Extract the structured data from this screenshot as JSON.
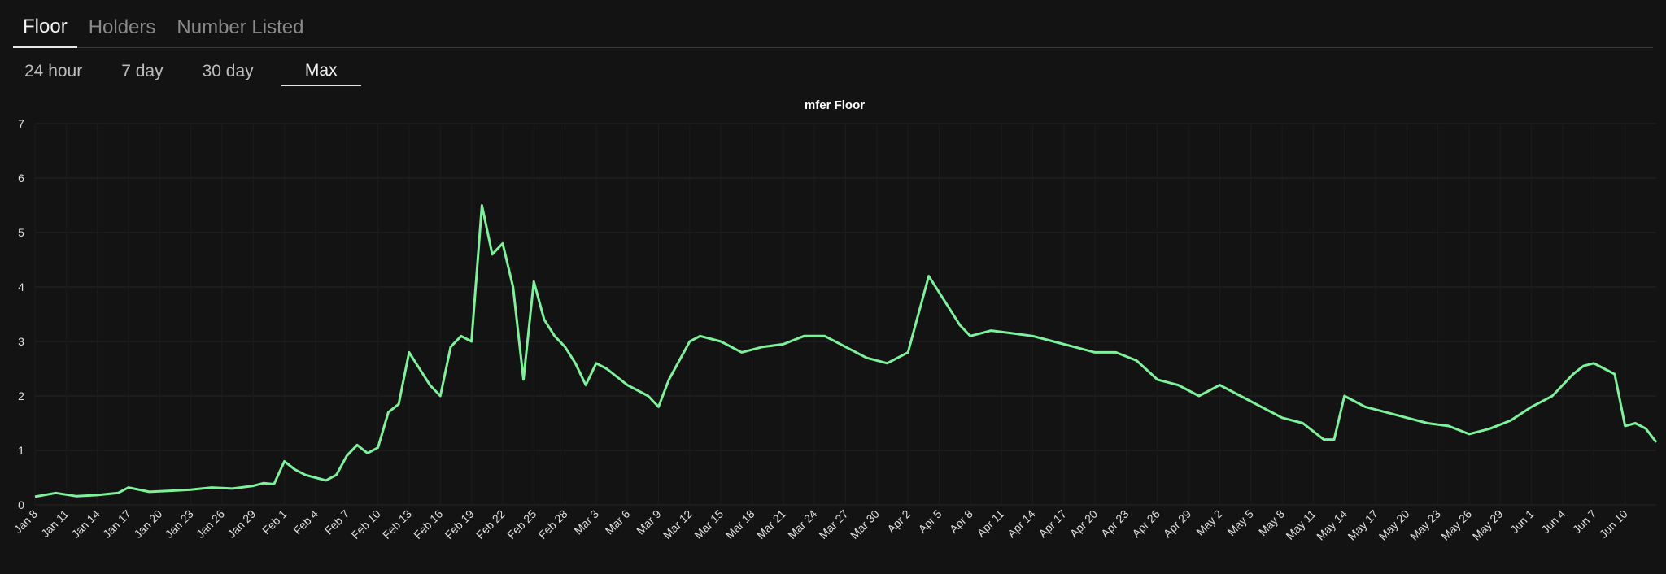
{
  "tabs": [
    {
      "label": "Floor",
      "active": true
    },
    {
      "label": "Holders",
      "active": false
    },
    {
      "label": "Number Listed",
      "active": false
    }
  ],
  "ranges": [
    {
      "label": "24 hour",
      "active": false
    },
    {
      "label": "7 day",
      "active": false
    },
    {
      "label": "30 day",
      "active": false
    },
    {
      "label": "Max",
      "active": true
    }
  ],
  "colors": {
    "line": "#7cf29b",
    "background": "#131313",
    "grid": "#262626"
  },
  "chart_data": {
    "type": "line",
    "title": "mfer Floor",
    "xlabel": "",
    "ylabel": "",
    "ylim": [
      0,
      7
    ],
    "yticks": [
      0,
      1,
      2,
      3,
      4,
      5,
      6,
      7
    ],
    "xlim": [
      "Jan 8",
      "Jun 13"
    ],
    "grid": true,
    "legend": "none",
    "xtick_labels": [
      "Jan 8",
      "Jan 11",
      "Jan 14",
      "Jan 17",
      "Jan 20",
      "Jan 23",
      "Jan 26",
      "Jan 29",
      "Feb 1",
      "Feb 4",
      "Feb 7",
      "Feb 10",
      "Feb 13",
      "Feb 16",
      "Feb 19",
      "Feb 22",
      "Feb 25",
      "Feb 28",
      "Mar 3",
      "Mar 6",
      "Mar 9",
      "Mar 12",
      "Mar 15",
      "Mar 18",
      "Mar 21",
      "Mar 24",
      "Mar 27",
      "Mar 30",
      "Apr 2",
      "Apr 5",
      "Apr 8",
      "Apr 11",
      "Apr 14",
      "Apr 17",
      "Apr 20",
      "Apr 23",
      "Apr 26",
      "Apr 29",
      "May 2",
      "May 5",
      "May 8",
      "May 11",
      "May 14",
      "May 17",
      "May 20",
      "May 23",
      "May 26",
      "May 29",
      "Jun 1",
      "Jun 4",
      "Jun 7",
      "Jun 10"
    ],
    "series": [
      {
        "x": [
          "Jan 8",
          "Jan 10",
          "Jan 12",
          "Jan 14",
          "Jan 16",
          "Jan 17",
          "Jan 19",
          "Jan 21",
          "Jan 23",
          "Jan 25",
          "Jan 27",
          "Jan 29",
          "Jan 30",
          "Jan 31",
          "Feb 1",
          "Feb 2",
          "Feb 3",
          "Feb 4",
          "Feb 5",
          "Feb 6",
          "Feb 7",
          "Feb 8",
          "Feb 9",
          "Feb 10",
          "Feb 11",
          "Feb 12",
          "Feb 13",
          "Feb 14",
          "Feb 15",
          "Feb 16",
          "Feb 17",
          "Feb 18",
          "Feb 19",
          "Feb 20",
          "Feb 21",
          "Feb 22",
          "Feb 23",
          "Feb 24",
          "Feb 25",
          "Feb 26",
          "Feb 27",
          "Feb 28",
          "Mar 1",
          "Mar 2",
          "Mar 3",
          "Mar 4",
          "Mar 6",
          "Mar 8",
          "Mar 9",
          "Mar 10",
          "Mar 12",
          "Mar 13",
          "Mar 15",
          "Mar 17",
          "Mar 19",
          "Mar 21",
          "Mar 23",
          "Mar 25",
          "Mar 27",
          "Mar 29",
          "Mar 31",
          "Apr 2",
          "Apr 3",
          "Apr 4",
          "Apr 5",
          "Apr 6",
          "Apr 7",
          "Apr 8",
          "Apr 10",
          "Apr 12",
          "Apr 14",
          "Apr 16",
          "Apr 18",
          "Apr 20",
          "Apr 22",
          "Apr 24",
          "Apr 26",
          "Apr 28",
          "Apr 30",
          "May 2",
          "May 4",
          "May 6",
          "May 8",
          "May 10",
          "May 12",
          "May 13",
          "May 14",
          "May 16",
          "May 18",
          "May 20",
          "May 22",
          "May 24",
          "May 26",
          "May 28",
          "May 30",
          "Jun 1",
          "Jun 3",
          "Jun 5",
          "Jun 6",
          "Jun 7",
          "Jun 8",
          "Jun 9",
          "Jun 10",
          "Jun 11",
          "Jun 12",
          "Jun 13"
        ],
        "y": [
          0.15,
          0.22,
          0.16,
          0.18,
          0.22,
          0.32,
          0.24,
          0.26,
          0.28,
          0.32,
          0.3,
          0.35,
          0.4,
          0.38,
          0.8,
          0.65,
          0.55,
          0.5,
          0.45,
          0.55,
          0.9,
          1.1,
          0.95,
          1.05,
          1.7,
          1.85,
          2.8,
          2.5,
          2.2,
          2.0,
          2.9,
          3.1,
          3.0,
          5.5,
          4.6,
          4.8,
          4.0,
          2.3,
          4.1,
          3.4,
          3.1,
          2.9,
          2.6,
          2.2,
          2.6,
          2.5,
          2.2,
          2.0,
          1.8,
          2.3,
          3.0,
          3.1,
          3.0,
          2.8,
          2.9,
          2.95,
          3.1,
          3.1,
          2.9,
          2.7,
          2.6,
          2.8,
          3.5,
          4.2,
          3.9,
          3.6,
          3.3,
          3.1,
          3.2,
          3.15,
          3.1,
          3.0,
          2.9,
          2.8,
          2.8,
          2.65,
          2.3,
          2.2,
          2.0,
          2.2,
          2.0,
          1.8,
          1.6,
          1.5,
          1.2,
          1.2,
          2.0,
          1.8,
          1.7,
          1.6,
          1.5,
          1.45,
          1.3,
          1.4,
          1.55,
          1.8,
          2.0,
          2.4,
          2.55,
          2.6,
          2.5,
          2.4,
          1.45,
          1.5,
          1.4,
          1.15
        ]
      }
    ]
  }
}
